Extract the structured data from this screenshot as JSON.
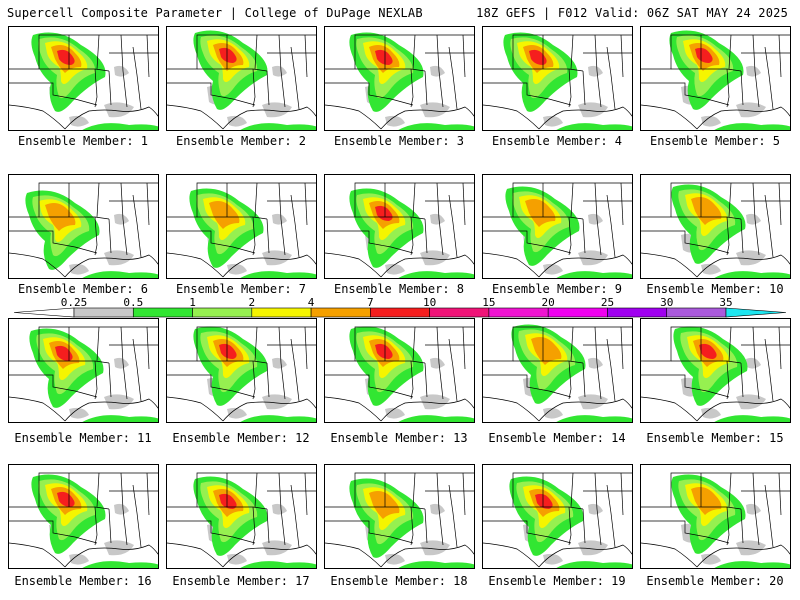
{
  "header": {
    "title_left": "Supercell Composite Parameter | College of DuPage NEXLAB",
    "title_right": "18Z GEFS | F012 Valid: 06Z SAT MAY 24 2025"
  },
  "panels": [
    {
      "label": "Ensemble Member: 1"
    },
    {
      "label": "Ensemble Member: 2"
    },
    {
      "label": "Ensemble Member: 3"
    },
    {
      "label": "Ensemble Member: 4"
    },
    {
      "label": "Ensemble Member: 5"
    },
    {
      "label": "Ensemble Member: 6"
    },
    {
      "label": "Ensemble Member: 7"
    },
    {
      "label": "Ensemble Member: 8"
    },
    {
      "label": "Ensemble Member: 9"
    },
    {
      "label": "Ensemble Member: 10"
    },
    {
      "label": "Ensemble Member: 11"
    },
    {
      "label": "Ensemble Member: 12"
    },
    {
      "label": "Ensemble Member: 13"
    },
    {
      "label": "Ensemble Member: 14"
    },
    {
      "label": "Ensemble Member: 15"
    },
    {
      "label": "Ensemble Member: 16"
    },
    {
      "label": "Ensemble Member: 17"
    },
    {
      "label": "Ensemble Member: 18"
    },
    {
      "label": "Ensemble Member: 19"
    },
    {
      "label": "Ensemble Member: 20"
    }
  ],
  "legend": {
    "ticks": [
      "0.25",
      "0.5",
      "1",
      "2",
      "4",
      "7",
      "10",
      "15",
      "20",
      "25",
      "30",
      "35"
    ],
    "colors": [
      "#c8c8c8",
      "#32e632",
      "#96f050",
      "#f5f500",
      "#f5a000",
      "#f51e1e",
      "#f01478",
      "#f014d2",
      "#f000f0",
      "#a000f0",
      "#aa5adc",
      "#1ee6f0"
    ]
  }
}
